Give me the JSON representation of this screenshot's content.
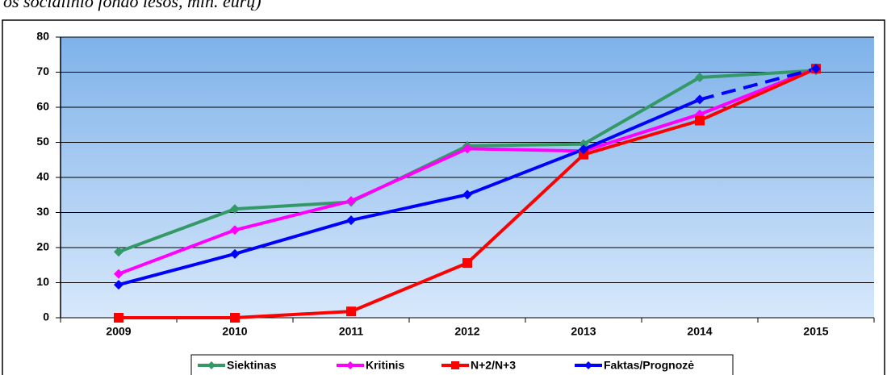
{
  "caption": "os socialinio fondo lėšos, mln. eurų)",
  "chart_data": {
    "type": "line",
    "categories": [
      "2009",
      "2010",
      "2011",
      "2012",
      "2013",
      "2014",
      "2015"
    ],
    "series": [
      {
        "name": "Siektinas",
        "color": "#339966",
        "marker": "diamond",
        "values": [
          18.8,
          31,
          33,
          49,
          49.5,
          68.5,
          70.5
        ]
      },
      {
        "name": "Kritinis",
        "color": "#ff00ff",
        "marker": "diamond",
        "values": [
          12.5,
          25,
          33.3,
          48.2,
          47.5,
          58,
          71
        ]
      },
      {
        "name": "N+2/N+3",
        "color": "#ff0000",
        "marker": "square",
        "values": [
          0,
          0,
          1.8,
          15.6,
          46.5,
          56.2,
          71
        ]
      },
      {
        "name": "Faktas/Prognozė",
        "color": "#0000ff",
        "marker": "diamond",
        "dashed_from": 5,
        "values": [
          9.4,
          18.2,
          27.8,
          35.1,
          48,
          62.2,
          71
        ]
      }
    ],
    "ylim": [
      0,
      80
    ],
    "yticks": [
      0,
      10,
      20,
      30,
      40,
      50,
      60,
      70,
      80
    ],
    "grid": true,
    "legend": "bottom"
  }
}
